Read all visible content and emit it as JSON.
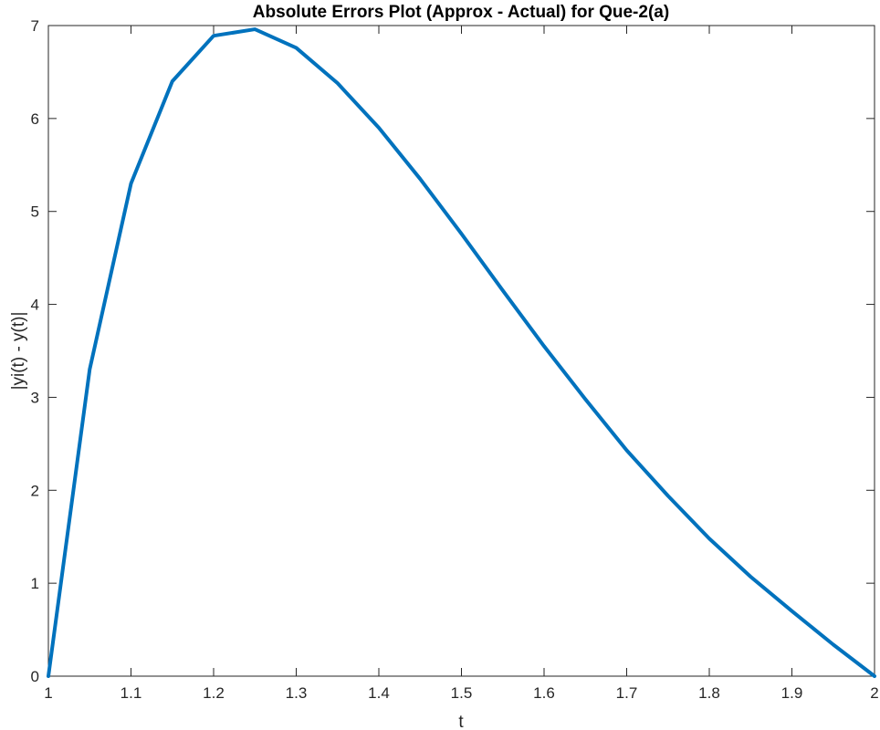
{
  "chart_data": {
    "type": "line",
    "title": "Absolute Errors Plot (Approx - Actual) for Que-2(a)",
    "xlabel": "t",
    "ylabel": "|yi(t) - y(t)|",
    "xlim": [
      1,
      2
    ],
    "ylim": [
      0,
      7
    ],
    "xticks": [
      1,
      1.1,
      1.2,
      1.3,
      1.4,
      1.5,
      1.6,
      1.7,
      1.8,
      1.9,
      2
    ],
    "xtick_labels": [
      "1",
      "1.1",
      "1.2",
      "1.3",
      "1.4",
      "1.5",
      "1.6",
      "1.7",
      "1.8",
      "1.9",
      "2"
    ],
    "yticks": [
      0,
      1,
      2,
      3,
      4,
      5,
      6,
      7
    ],
    "ytick_labels": [
      "0",
      "1",
      "2",
      "3",
      "4",
      "5",
      "6",
      "7"
    ],
    "grid": false,
    "line_color": "#0072BD",
    "series": [
      {
        "x": [
          1.0,
          1.05,
          1.1,
          1.15,
          1.2,
          1.25,
          1.3,
          1.35,
          1.4,
          1.45,
          1.5,
          1.55,
          1.6,
          1.65,
          1.7,
          1.75,
          1.8,
          1.85,
          1.9,
          1.95,
          2.0
        ],
        "values": [
          0.0,
          3.3,
          5.3,
          6.4,
          6.89,
          6.96,
          6.76,
          6.38,
          5.9,
          5.35,
          4.76,
          4.15,
          3.55,
          2.98,
          2.43,
          1.94,
          1.48,
          1.07,
          0.7,
          0.34,
          0.0
        ]
      }
    ]
  }
}
